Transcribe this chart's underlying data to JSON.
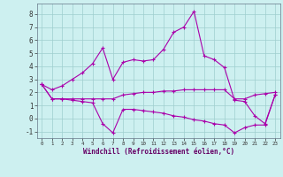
{
  "xlabel": "Windchill (Refroidissement éolien,°C)",
  "background_color": "#cdf0f0",
  "grid_color": "#a8d8d8",
  "line_color": "#aa00aa",
  "xlim": [
    -0.5,
    23.5
  ],
  "ylim": [
    -1.5,
    8.8
  ],
  "yticks": [
    -1,
    0,
    1,
    2,
    3,
    4,
    5,
    6,
    7,
    8
  ],
  "xticks": [
    0,
    1,
    2,
    3,
    4,
    5,
    6,
    7,
    8,
    9,
    10,
    11,
    12,
    13,
    14,
    15,
    16,
    17,
    18,
    19,
    20,
    21,
    22,
    23
  ],
  "line1_x": [
    0,
    1,
    2,
    3,
    4,
    5,
    6,
    7,
    8,
    9,
    10,
    11,
    12,
    13,
    14,
    15,
    16,
    17,
    18,
    19,
    20,
    21,
    22,
    23
  ],
  "line1_y": [
    2.6,
    2.2,
    2.5,
    3.0,
    3.5,
    4.2,
    5.4,
    3.0,
    4.3,
    4.5,
    4.4,
    4.5,
    5.3,
    6.6,
    7.0,
    8.2,
    4.8,
    4.5,
    3.9,
    1.4,
    1.3,
    0.2,
    -0.4,
    1.8
  ],
  "line2_x": [
    0,
    1,
    2,
    3,
    4,
    5,
    6,
    7,
    8,
    9,
    10,
    11,
    12,
    13,
    14,
    15,
    16,
    17,
    18,
    19,
    20,
    21,
    22,
    23
  ],
  "line2_y": [
    2.6,
    1.5,
    1.5,
    1.5,
    1.5,
    1.5,
    1.5,
    1.5,
    1.8,
    1.9,
    2.0,
    2.0,
    2.1,
    2.1,
    2.2,
    2.2,
    2.2,
    2.2,
    2.2,
    1.5,
    1.5,
    1.8,
    1.9,
    2.0
  ],
  "line3_x": [
    0,
    1,
    2,
    3,
    4,
    5,
    6,
    7,
    8,
    9,
    10,
    11,
    12,
    13,
    14,
    15,
    16,
    17,
    18,
    19,
    20,
    21,
    22,
    23
  ],
  "line3_y": [
    2.6,
    1.5,
    1.5,
    1.4,
    1.3,
    1.2,
    -0.4,
    -1.1,
    0.7,
    0.7,
    0.6,
    0.5,
    0.4,
    0.2,
    0.1,
    -0.1,
    -0.2,
    -0.4,
    -0.5,
    -1.1,
    -0.7,
    -0.5,
    -0.5,
    1.8
  ]
}
